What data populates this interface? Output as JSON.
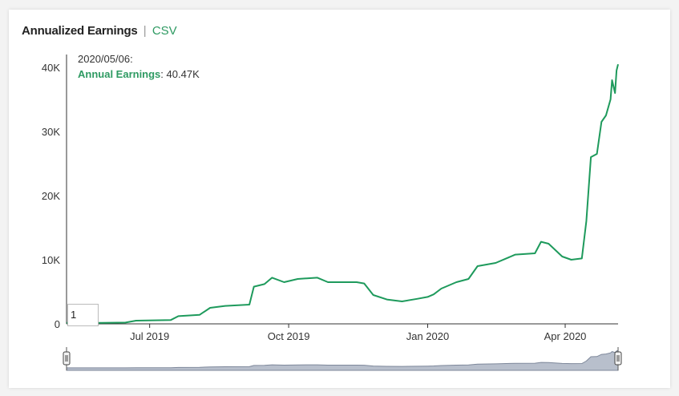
{
  "header": {
    "title": "Annualized Earnings",
    "separator": "|",
    "csv_label": "CSV"
  },
  "tooltip": {
    "date": "2020/05/06:",
    "series": "Annual Earnings",
    "value": "40.47K"
  },
  "range_input": {
    "value": "1"
  },
  "colors": {
    "line": "#1e9a5c",
    "accent": "#2e9a62",
    "navigator_fill": "#b8bfcc",
    "navigator_line": "#7d879a"
  },
  "chart_data": {
    "type": "line",
    "title": "Annualized Earnings",
    "xlabel": "",
    "ylabel": "",
    "x_ticks": [
      "Jul 2019",
      "Oct 2019",
      "Jan 2020",
      "Apr 2020"
    ],
    "y_ticks": [
      "0",
      "10K",
      "20K",
      "30K",
      "40K"
    ],
    "y_tick_values": [
      0,
      10000,
      20000,
      30000,
      40000
    ],
    "ylim": [
      0,
      42000
    ],
    "xlim": [
      "2019-05-07",
      "2020-05-06"
    ],
    "grid": false,
    "series": [
      {
        "name": "Annual Earnings",
        "points": [
          [
            "2019-05-07",
            150
          ],
          [
            "2019-05-25",
            150
          ],
          [
            "2019-06-15",
            200
          ],
          [
            "2019-06-22",
            500
          ],
          [
            "2019-07-15",
            600
          ],
          [
            "2019-07-20",
            1200
          ],
          [
            "2019-08-03",
            1400
          ],
          [
            "2019-08-10",
            2500
          ],
          [
            "2019-08-20",
            2800
          ],
          [
            "2019-09-05",
            3000
          ],
          [
            "2019-09-08",
            5800
          ],
          [
            "2019-09-15",
            6200
          ],
          [
            "2019-09-20",
            7200
          ],
          [
            "2019-09-28",
            6500
          ],
          [
            "2019-10-07",
            7000
          ],
          [
            "2019-10-20",
            7200
          ],
          [
            "2019-10-27",
            6500
          ],
          [
            "2019-11-15",
            6500
          ],
          [
            "2019-11-20",
            6300
          ],
          [
            "2019-11-26",
            4500
          ],
          [
            "2019-12-05",
            3800
          ],
          [
            "2019-12-15",
            3500
          ],
          [
            "2019-12-25",
            3900
          ],
          [
            "2020-01-01",
            4200
          ],
          [
            "2020-01-05",
            4600
          ],
          [
            "2020-01-10",
            5500
          ],
          [
            "2020-01-20",
            6500
          ],
          [
            "2020-01-28",
            7000
          ],
          [
            "2020-02-03",
            9000
          ],
          [
            "2020-02-15",
            9500
          ],
          [
            "2020-02-28",
            10800
          ],
          [
            "2020-03-12",
            11000
          ],
          [
            "2020-03-16",
            12800
          ],
          [
            "2020-03-21",
            12500
          ],
          [
            "2020-03-30",
            10500
          ],
          [
            "2020-04-05",
            10000
          ],
          [
            "2020-04-12",
            10200
          ],
          [
            "2020-04-15",
            16000
          ],
          [
            "2020-04-18",
            26000
          ],
          [
            "2020-04-22",
            26500
          ],
          [
            "2020-04-25",
            31500
          ],
          [
            "2020-04-28",
            32500
          ],
          [
            "2020-05-01",
            35000
          ],
          [
            "2020-05-02",
            38000
          ],
          [
            "2020-05-04",
            36000
          ],
          [
            "2020-05-05",
            39500
          ],
          [
            "2020-05-06",
            40470
          ]
        ]
      }
    ]
  }
}
